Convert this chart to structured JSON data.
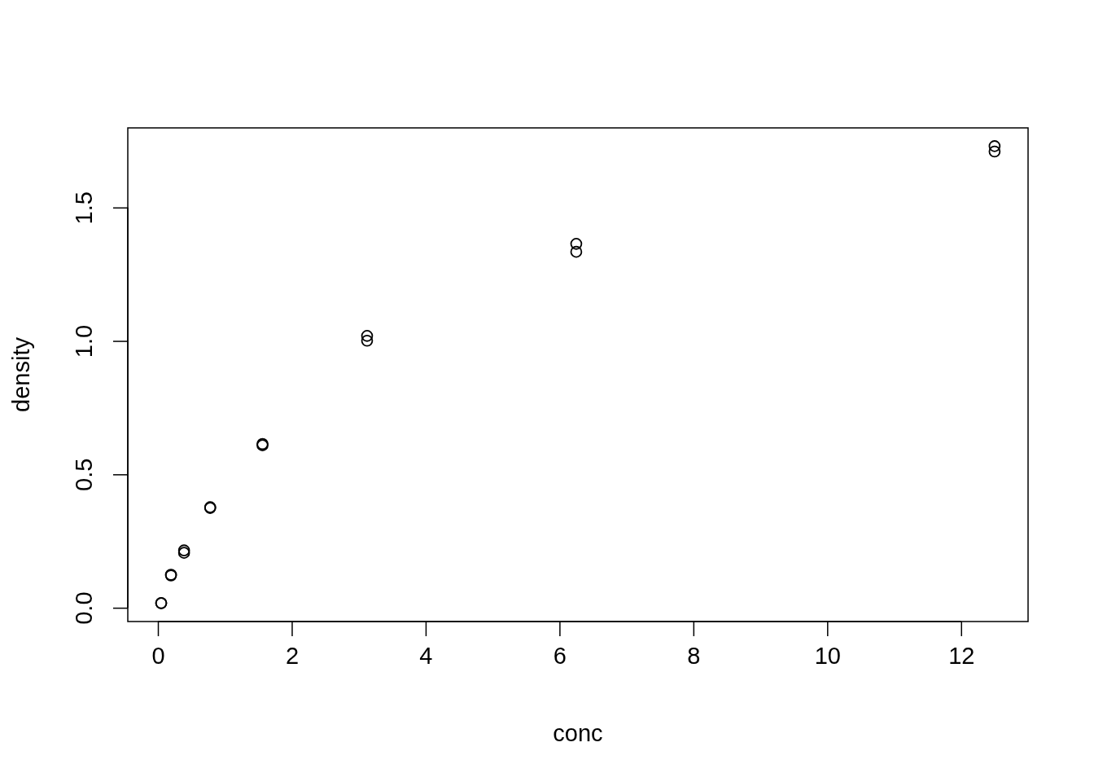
{
  "chart_data": {
    "type": "scatter",
    "xlabel": "conc",
    "ylabel": "density",
    "x": [
      0.04882812,
      0.04882812,
      0.1953125,
      0.1953125,
      0.390625,
      0.390625,
      0.78125,
      0.78125,
      1.5625,
      1.5625,
      3.125,
      3.125,
      6.25,
      6.25,
      12.5,
      12.5
    ],
    "values": [
      0.017,
      0.018,
      0.121,
      0.124,
      0.206,
      0.215,
      0.377,
      0.374,
      0.614,
      0.609,
      1.019,
      1.001,
      1.334,
      1.364,
      1.73,
      1.71
    ],
    "color": "#000000",
    "marker": "circle",
    "xlim": [
      -0.45,
      13.0
    ],
    "ylim": [
      -0.0515,
      1.7985
    ],
    "xticks": [
      0,
      2,
      4,
      6,
      8,
      10,
      12
    ],
    "yticks": [
      {
        "value": 0,
        "label": "0.0"
      },
      {
        "value": 0.5,
        "label": "0.5"
      },
      {
        "value": 1,
        "label": "1.0"
      },
      {
        "value": 1.5,
        "label": "1.5"
      }
    ],
    "grid": false
  }
}
